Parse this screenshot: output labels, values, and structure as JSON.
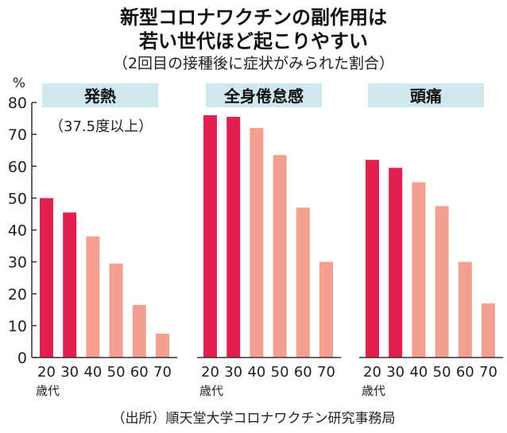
{
  "title_line1": "新型コロナワクチンの副作用は",
  "title_line2": "若い世代ほど起こりやすい",
  "subtitle": "（2回目の接種後に症状がみられた割合）",
  "y_unit": "%",
  "source": "（出所）順天堂大学コロナワクチン研究事務局",
  "age_suffix": "歳代",
  "colors": {
    "young": "#e0214f",
    "old": "#f4a090",
    "label_bg": "#cfe8ef",
    "axis": "#333333"
  },
  "chart_data": {
    "type": "bar",
    "ylabel": "%",
    "ylim": [
      0,
      80
    ],
    "yticks": [
      0,
      10,
      20,
      30,
      40,
      50,
      60,
      70,
      80
    ],
    "categories": [
      "20",
      "30",
      "40",
      "50",
      "60",
      "70"
    ],
    "grid": false,
    "panels": [
      {
        "name": "発熱",
        "note": "（37.5度以上）",
        "values": [
          50,
          45.5,
          38,
          29.5,
          16.5,
          7.5
        ]
      },
      {
        "name": "全身倦怠感",
        "note": "",
        "values": [
          76,
          75.5,
          72,
          63.5,
          47,
          30
        ]
      },
      {
        "name": "頭痛",
        "note": "",
        "values": [
          62,
          59.5,
          55,
          47.5,
          30,
          17
        ]
      }
    ]
  }
}
